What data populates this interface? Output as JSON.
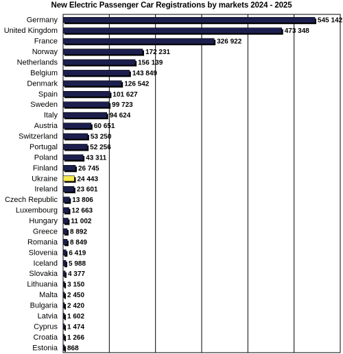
{
  "chart_data": {
    "type": "bar",
    "orientation": "horizontal",
    "title": "New Electric Passenger Car Registrations by markets 2024 - 2025",
    "xlabel": "",
    "ylabel": "",
    "xlim": [
      0,
      600000
    ],
    "grid": true,
    "legend": "none",
    "categories": [
      "Germany",
      "United Kingdom",
      "France",
      "Norway",
      "Netherlands",
      "Belgium",
      "Denmark",
      "Spain",
      "Sweden",
      "Italy",
      "Austria",
      "Switzerland",
      "Portugal",
      "Poland",
      "Finland",
      "Ukraine",
      "Ireland",
      "Czech Republic",
      "Luxembourg",
      "Hungary",
      "Greece",
      "Romania",
      "Slovenia",
      "Iceland",
      "Slovakia",
      "Lithuania",
      "Malta",
      "Bulgaria",
      "Latvia",
      "Cyprus",
      "Croatia",
      "Estonia"
    ],
    "values": [
      545142,
      473348,
      326922,
      172231,
      156139,
      143849,
      126542,
      101627,
      99723,
      94624,
      60651,
      53250,
      52256,
      43311,
      26745,
      24443,
      23601,
      13806,
      12663,
      11002,
      8892,
      8849,
      6419,
      5988,
      4377,
      3150,
      2450,
      2420,
      1602,
      1474,
      1266,
      868
    ],
    "value_labels": [
      "545 142",
      "473 348",
      "326 922",
      "172 231",
      "156 139",
      "143 849",
      "126 542",
      "101 627",
      "99 723",
      "94 624",
      "60 651",
      "53 250",
      "52 256",
      "43 311",
      "26 745",
      "24 443",
      "23 601",
      "13 806",
      "12 663",
      "11 002",
      "8 892",
      "8 849",
      "6 419",
      "5 988",
      "4 377",
      "3 150",
      "2 450",
      "2 420",
      "1 602",
      "1 474",
      "1 266",
      "868"
    ],
    "highlight": "Ukraine",
    "colors": {
      "bar": "#1c1f4e",
      "highlight": "#f5ea50",
      "shadow": "#000000",
      "grid": "#000000"
    }
  }
}
